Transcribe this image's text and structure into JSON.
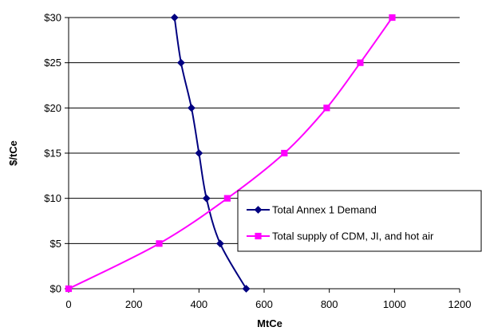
{
  "chart_data": {
    "type": "line",
    "title": "",
    "xlabel": "MtCe",
    "ylabel": "$/tCe",
    "xlim": [
      0,
      1200
    ],
    "ylim": [
      0,
      30
    ],
    "xticks": [
      0,
      200,
      400,
      600,
      800,
      1000,
      1200
    ],
    "yticks": [
      0,
      5,
      10,
      15,
      20,
      25,
      30
    ],
    "xtick_labels": [
      "0",
      "200",
      "400",
      "600",
      "800",
      "1000",
      "1200"
    ],
    "ytick_labels": [
      "$0",
      "$5",
      "$10",
      "$15",
      "$20",
      "$25",
      "$30"
    ],
    "grid": "horizontal",
    "legend_position": "right",
    "series": [
      {
        "name": "Total Annex 1 Demand",
        "color": "#000080",
        "marker": "diamond",
        "points": [
          {
            "x": 545,
            "y": 0
          },
          {
            "x": 465,
            "y": 5
          },
          {
            "x": 423,
            "y": 10
          },
          {
            "x": 400,
            "y": 15
          },
          {
            "x": 377,
            "y": 20
          },
          {
            "x": 345,
            "y": 25
          },
          {
            "x": 325,
            "y": 30
          }
        ]
      },
      {
        "name": "Total supply of CDM, JI, and hot air",
        "color": "#ff00ff",
        "marker": "square",
        "points": [
          {
            "x": 0,
            "y": 0
          },
          {
            "x": 278,
            "y": 5
          },
          {
            "x": 487,
            "y": 10
          },
          {
            "x": 662,
            "y": 15
          },
          {
            "x": 792,
            "y": 20
          },
          {
            "x": 895,
            "y": 25
          },
          {
            "x": 993,
            "y": 30
          }
        ]
      }
    ]
  }
}
